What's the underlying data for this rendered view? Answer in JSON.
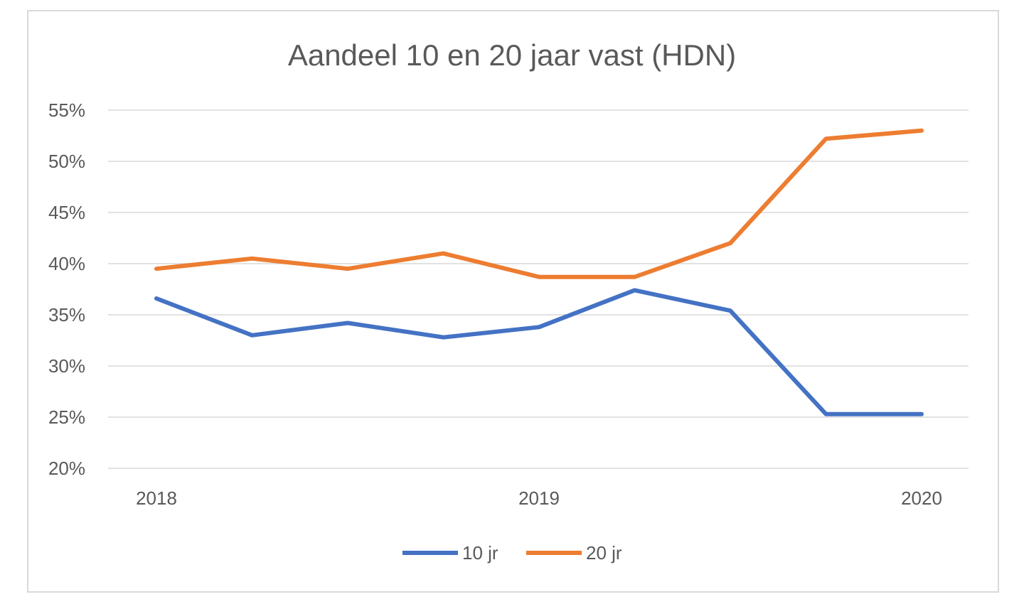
{
  "chart_data": {
    "type": "line",
    "title": "Aandeel 10 en 20 jaar vast (HDN)",
    "xlabel": "",
    "ylabel": "",
    "x": [
      0,
      1,
      2,
      3,
      4,
      5,
      6,
      7,
      8
    ],
    "x_tick_labels": [
      {
        "at": 0,
        "label": "2018"
      },
      {
        "at": 4,
        "label": "2019"
      },
      {
        "at": 8,
        "label": "2020"
      }
    ],
    "y_ticks": [
      20,
      25,
      30,
      35,
      40,
      45,
      50,
      55
    ],
    "y_tick_format": "%",
    "ylim": [
      20,
      55
    ],
    "grid": true,
    "legend_position": "bottom",
    "series": [
      {
        "name": "10 jr",
        "color": "#4472c4",
        "values": [
          36.6,
          33.0,
          34.2,
          32.8,
          33.8,
          37.4,
          35.4,
          25.3,
          25.3
        ]
      },
      {
        "name": "20 jr",
        "color": "#ed7d31",
        "values": [
          39.5,
          40.5,
          39.5,
          41.0,
          38.7,
          38.7,
          42.0,
          52.2,
          53.0
        ]
      }
    ]
  }
}
